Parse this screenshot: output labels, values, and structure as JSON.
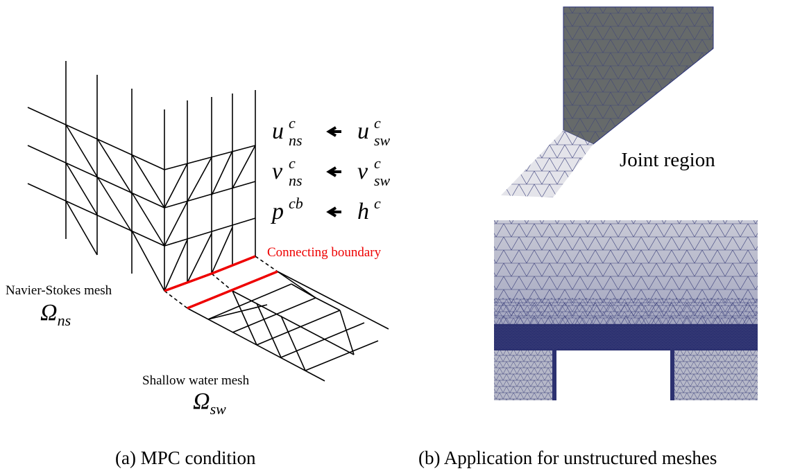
{
  "left_panel": {
    "equations": [
      {
        "lhs": {
          "base": "u",
          "sup": "c",
          "sub": "ns"
        },
        "rhs": {
          "base": "u",
          "sup": "c",
          "sub": "sw"
        }
      },
      {
        "lhs": {
          "base": "v",
          "sup": "c",
          "sub": "ns"
        },
        "rhs": {
          "base": "v",
          "sup": "c",
          "sub": "sw"
        }
      },
      {
        "lhs": {
          "base": "p",
          "sup": "cb"
        },
        "rhs": {
          "base": "h",
          "sup": "c"
        }
      }
    ],
    "connecting_label": "Connecting boundary",
    "ns_label": "Navier-Stokes mesh",
    "ns_symbol": {
      "base": "Ω",
      "sub": "ns"
    },
    "sw_label": "Shallow water mesh",
    "sw_symbol": {
      "base": "Ω",
      "sub": "sw"
    },
    "caption": "(a) MPC condition"
  },
  "right_panel": {
    "joint_label": "Joint region",
    "caption": "(b) Application for unstructured meshes"
  }
}
